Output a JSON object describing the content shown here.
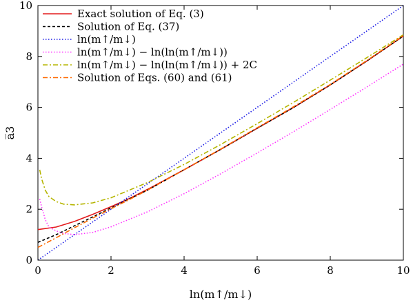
{
  "chart_data": {
    "type": "line",
    "title": "",
    "xlabel": "ln(m↑/m↓)",
    "ylabel": "a̅3",
    "xlim": [
      0,
      10
    ],
    "ylim": [
      0,
      10
    ],
    "xticks": [
      "0",
      "2",
      "4",
      "6",
      "8",
      "10"
    ],
    "yticks": [
      "0",
      "2",
      "4",
      "6",
      "8",
      "10"
    ],
    "grid": false,
    "legend_position": "top-left",
    "series": [
      {
        "name": "Exact solution of Eq. (3)",
        "color": "#e41a1c",
        "style": "solid",
        "x": [
          0,
          0.5,
          1,
          1.5,
          2,
          2.5,
          3,
          4,
          5,
          6,
          7,
          8,
          9,
          10
        ],
        "y": [
          1.2,
          1.3,
          1.52,
          1.8,
          2.1,
          2.42,
          2.78,
          3.55,
          4.35,
          5.18,
          6.0,
          6.88,
          7.82,
          8.8
        ]
      },
      {
        "name": "Solution of Eq. (37)",
        "color": "#000000",
        "style": "dashed",
        "x": [
          0,
          0.5,
          1,
          1.5,
          2,
          2.5,
          3,
          4,
          5,
          6,
          7,
          8,
          9,
          10
        ],
        "y": [
          0.7,
          1.0,
          1.35,
          1.7,
          2.05,
          2.4,
          2.75,
          3.55,
          4.35,
          5.18,
          6.0,
          6.88,
          7.82,
          8.8
        ]
      },
      {
        "name": "ln(m↑/m↓)",
        "color": "#1a1ae6",
        "style": "dotted",
        "x": [
          0,
          10
        ],
        "y": [
          0,
          10
        ]
      },
      {
        "name": "ln(m↑/m↓) − ln(ln(m↑/m↓))",
        "color": "#ff33ff",
        "style": "dotted",
        "x": [
          0.05,
          0.1,
          0.2,
          0.3,
          0.5,
          0.7,
          1,
          1.5,
          2,
          3,
          4,
          5,
          6,
          7,
          8,
          9,
          10
        ],
        "y": [
          2.4,
          2.1,
          1.6,
          1.3,
          1.15,
          1.05,
          1.0,
          1.09,
          1.31,
          1.9,
          2.61,
          3.39,
          4.21,
          5.05,
          5.92,
          6.8,
          7.7
        ]
      },
      {
        "name": "ln(m↑/m↓) − ln(ln(m↑/m↓)) + 2C",
        "color": "#b5b500",
        "style": "dashdot",
        "x": [
          0.05,
          0.1,
          0.2,
          0.3,
          0.5,
          0.7,
          1,
          1.5,
          2,
          3,
          4,
          5,
          6,
          7,
          8,
          9,
          10
        ],
        "y": [
          3.55,
          3.2,
          2.75,
          2.5,
          2.3,
          2.2,
          2.17,
          2.25,
          2.45,
          3.05,
          3.76,
          4.54,
          5.36,
          6.2,
          7.07,
          7.95,
          8.85
        ]
      },
      {
        "name": "Solution of Eqs. (60) and (61)",
        "color": "#ff6a00",
        "style": "dashdot",
        "x": [
          0,
          0.5,
          1,
          1.5,
          2,
          2.5,
          3,
          4,
          5,
          6,
          7,
          8,
          9,
          10
        ],
        "y": [
          0.5,
          0.88,
          1.27,
          1.65,
          2.02,
          2.38,
          2.75,
          3.55,
          4.36,
          5.2,
          6.03,
          6.9,
          7.84,
          8.82
        ]
      }
    ]
  }
}
